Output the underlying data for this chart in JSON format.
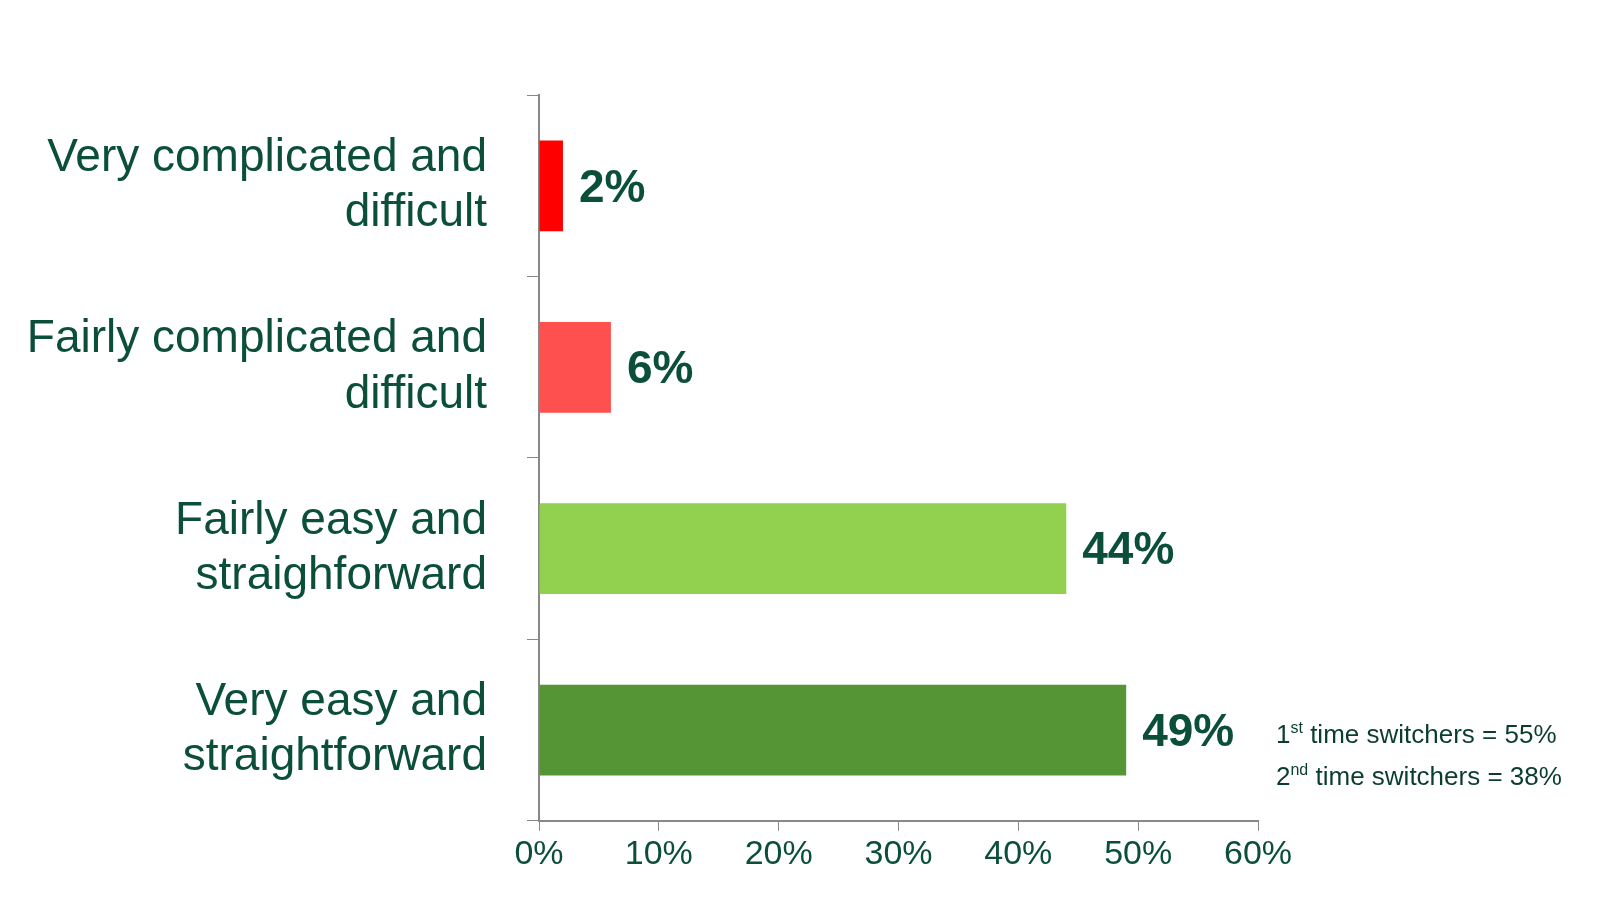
{
  "chart_data": {
    "type": "bar",
    "orientation": "horizontal",
    "categories": [
      "Very complicated and difficult",
      "Fairly complicated and difficult",
      "Fairly easy and straighforward",
      "Very easy and straightforward"
    ],
    "values": [
      2,
      6,
      44,
      49
    ],
    "colors": [
      "#ff0000",
      "#ff5050",
      "#92d050",
      "#559535"
    ],
    "value_labels": [
      "2%",
      "6%",
      "44%",
      "49%"
    ],
    "xlim": [
      0,
      60
    ],
    "xticks": [
      {
        "value": 0,
        "label": "0%"
      },
      {
        "value": 10,
        "label": "10%"
      },
      {
        "value": 20,
        "label": "20%"
      },
      {
        "value": 30,
        "label": "30%"
      },
      {
        "value": 40,
        "label": "40%"
      },
      {
        "value": 50,
        "label": "50%"
      },
      {
        "value": 60,
        "label": "60%"
      }
    ],
    "annotations": [
      "1$^{st}$ time switchers = 55%",
      "2$^{nd}$ time switchers = 38%"
    ],
    "grid": false,
    "legend": false
  }
}
